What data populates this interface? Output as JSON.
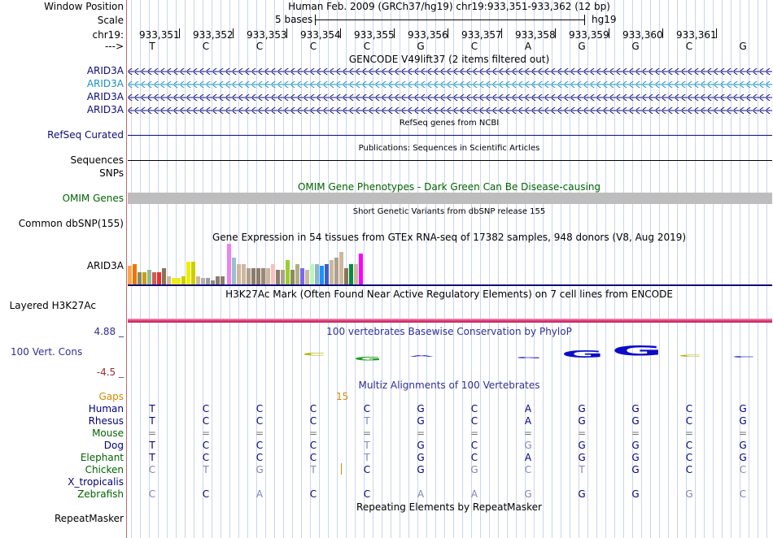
{
  "labels": {
    "window_position": "Window Position",
    "scale": "Scale",
    "chr": "chr19:",
    "strand": "--->",
    "arid3a": "ARID3A",
    "refseq": "RefSeq Curated",
    "sequences": "Sequences",
    "snps": "SNPs",
    "omim": "OMIM Genes",
    "common_dbsnp": "Common dbSNP(155)",
    "gtex_gene": "ARID3A",
    "h3k27ac": "Layered H3K27Ac",
    "cons_max": "4.88 _",
    "cons_label": "100 Vert. Cons",
    "cons_min": "-4.5 _",
    "gaps": "Gaps",
    "repeatmasker": "RepeatMasker"
  },
  "header": {
    "position_title": "Human Feb. 2009 (GRCh37/hg19)   chr19:933,351-933,362 (12 bp)",
    "scale_text": "5 bases",
    "assembly": "hg19"
  },
  "coordinates": [
    "933,351",
    "933,352",
    "933,353",
    "933,354",
    "933,355",
    "933,356",
    "933,357",
    "933,358",
    "933,359",
    "933,360",
    "933,361"
  ],
  "reference_bases": [
    "T",
    "C",
    "C",
    "C",
    "C",
    "G",
    "C",
    "A",
    "G",
    "G",
    "C",
    "G"
  ],
  "tracks": {
    "gencode": "GENCODE V49lift37 (2 items filtered out)",
    "refseq": "RefSeq genes from NCBI",
    "publications": "Publications: Sequences in Scientific Articles",
    "omim": "OMIM Gene Phenotypes - Dark Green Can Be Disease-causing",
    "dbsnp": "Short Genetic Variants from dbSNP release 155",
    "gtex": "Gene Expression in 54 tissues from GTEx RNA-seq of 17382 samples, 948 donors (V8, Aug 2019)",
    "h3k27ac": "H3K27Ac Mark (Often Found Near Active Regulatory Elements) on 7 cell lines from ENCODE",
    "phylop": "100 vertebrates Basewise Conservation by PhyloP",
    "multiz": "Multiz Alignments of 100 Vertebrates",
    "repeat": "Repeating Elements by RepeatMasker"
  },
  "gaps_value": "15",
  "gtex_values": [
    0.45,
    0.5,
    0.3,
    0.3,
    0.35,
    0.3,
    0.3,
    0.4,
    0.2,
    0.15,
    0.15,
    0.2,
    0.55,
    0.55,
    0.2,
    0.15,
    0.15,
    0.1,
    0.2,
    0.2,
    1.0,
    0.65,
    0.5,
    0.5,
    0.4,
    0.4,
    0.4,
    0.4,
    0.4,
    0.5,
    0.35,
    0.35,
    0.6,
    0.35,
    0.5,
    0.4,
    0.35,
    0.5,
    0.5,
    0.45,
    0.5,
    0.6,
    0.65,
    0.8,
    0.4,
    0.5,
    0.5,
    0.75
  ],
  "gtex_colors": [
    "#FFA54F",
    "#EE7600",
    "#8B8B5B",
    "#CD9B1D",
    "#8FBC8F",
    "#CD5C5C",
    "#EE2C2C",
    "#8B7355",
    "#CDB79E",
    "#EEEE00",
    "#EEEE00",
    "#CDCD00",
    "#EEEE00",
    "#CDCD00",
    "#CDB79E",
    "#B0B0B0",
    "#9C9C9C",
    "#8B8989",
    "#8B7D6B",
    "#8B7D6B",
    "#EE82EE",
    "#9AC0CD",
    "#CDB79E",
    "#CDB79E",
    "#B0A090",
    "#8B7D6B",
    "#8B7D6B",
    "#9C8870",
    "#CDB79E",
    "#F4C2C2",
    "#8B7D6B",
    "#B0A090",
    "#9ACD32",
    "#8B8B5B",
    "#B0B080",
    "#7A67EE",
    "#CDB79E",
    "#B9F7B9",
    "#8DB6CD",
    "#1E90FF",
    "#3A5FCD",
    "#CDB79E",
    "#B0A090",
    "#CDB79E",
    "#8B7355",
    "#008B45",
    "#CDB79E",
    "#FF00FF"
  ],
  "conservation_logos": [
    "C",
    "G",
    "A",
    "G",
    "G",
    "G",
    "C",
    "C"
  ],
  "species": [
    {
      "name": "Human",
      "color": "#000080",
      "bases": [
        "T",
        "C",
        "C",
        "C",
        "C",
        "G",
        "C",
        "A",
        "G",
        "G",
        "C",
        "G"
      ]
    },
    {
      "name": "Rhesus",
      "color": "#000080",
      "bases": [
        "T",
        "C",
        "C",
        "C",
        "T",
        "G",
        "C",
        "A",
        "G",
        "G",
        "C",
        "G"
      ]
    },
    {
      "name": "Mouse",
      "color": "#006400",
      "bases": [
        "=",
        "=",
        "=",
        "=",
        "=",
        "=",
        "=",
        "=",
        "=",
        "=",
        "=",
        "="
      ]
    },
    {
      "name": "Dog",
      "color": "#000080",
      "bases": [
        "T",
        "C",
        "C",
        "C",
        "T",
        "G",
        "C",
        "G",
        "G",
        "G",
        "C",
        "G"
      ]
    },
    {
      "name": "Elephant",
      "color": "#006400",
      "bases": [
        "T",
        "C",
        "C",
        "C",
        "T",
        "G",
        "C",
        "A",
        "G",
        "G",
        "C",
        "G"
      ]
    },
    {
      "name": "Chicken",
      "color": "#006400",
      "bases": [
        "C",
        "T",
        "G",
        "T",
        "C",
        "G",
        "G",
        "C",
        "T",
        "G",
        "C",
        "C"
      ]
    },
    {
      "name": "X_tropicalis",
      "color": "#000080",
      "bases": [
        "",
        "",
        "",
        "",
        "",
        "",
        "",
        "",
        "",
        "",
        "",
        ""
      ]
    },
    {
      "name": "Zebrafish",
      "color": "#006400",
      "bases": [
        "C",
        "C",
        "A",
        "C",
        "C",
        "A",
        "A",
        "G",
        "G",
        "G",
        "G",
        "C"
      ]
    }
  ]
}
